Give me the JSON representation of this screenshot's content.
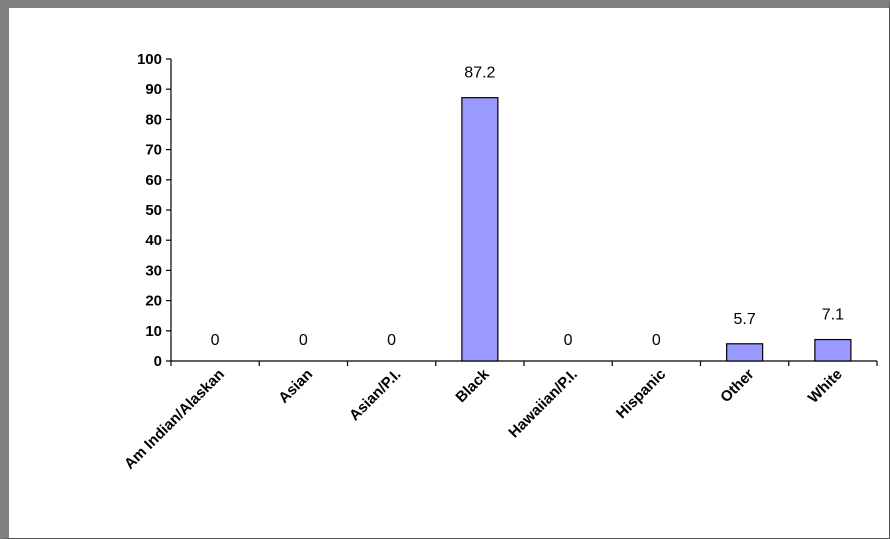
{
  "chart_data": {
    "type": "bar",
    "title": "",
    "xlabel": "",
    "ylabel": "",
    "categories": [
      "Am Indian/Alaskan",
      "Asian",
      "Asian/P.I.",
      "Black",
      "Hawaiian/P.I.",
      "Hispanic",
      "Other",
      "White"
    ],
    "values": [
      0,
      0,
      0,
      87.2,
      0,
      0,
      5.7,
      7.1
    ],
    "data_labels": [
      "0",
      "0",
      "0",
      "87.2",
      "0",
      "0",
      "5.7",
      "7.1"
    ],
    "ylim": [
      0,
      100
    ],
    "yticks": [
      0,
      10,
      20,
      30,
      40,
      50,
      60,
      70,
      80,
      90,
      100
    ],
    "grid": false,
    "legend": "none",
    "bar_color": "#9999ff"
  }
}
